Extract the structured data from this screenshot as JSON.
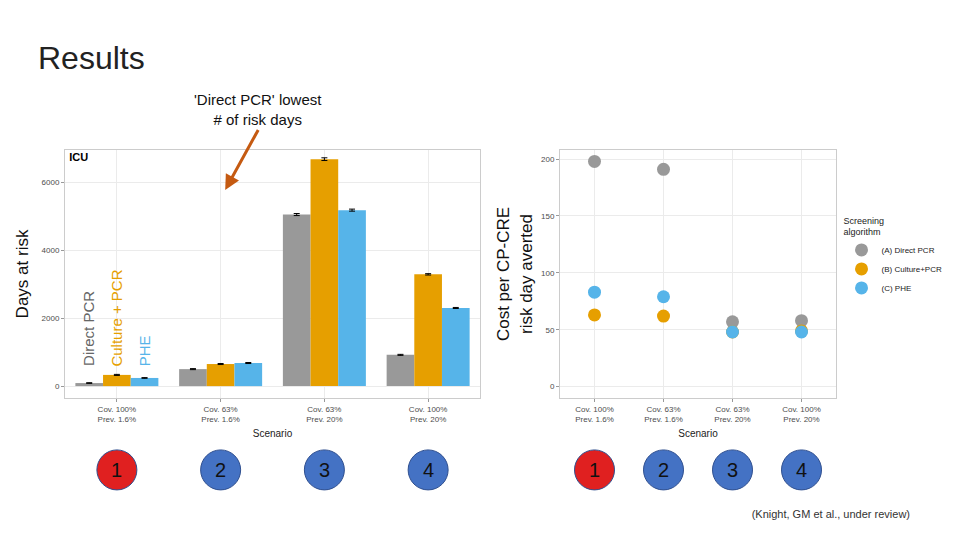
{
  "title": "Results",
  "source": "(Knight, GM et al., under review)",
  "chart_data": [
    {
      "type": "bar",
      "title": "ICU",
      "x_label": "Scenario",
      "y_label": "Days at risk",
      "categories": [
        "Cov. 100%\nPrev. 1.6%",
        "Cov. 63%\nPrev. 1.6%",
        "Cov. 63%\nPrev. 20%",
        "Cov. 100%\nPrev. 20%"
      ],
      "series": [
        {
          "name": "Direct PCR",
          "color": "#999999",
          "values": [
            90,
            500,
            5050,
            920
          ],
          "errors": [
            10,
            15,
            30,
            15
          ]
        },
        {
          "name": "Culture + PCR",
          "color": "#E69F00",
          "values": [
            330,
            650,
            6680,
            3290
          ],
          "errors": [
            15,
            15,
            40,
            20
          ]
        },
        {
          "name": "PHE",
          "color": "#56B4E9",
          "values": [
            240,
            680,
            5180,
            2300
          ],
          "errors": [
            10,
            15,
            30,
            15
          ]
        }
      ],
      "ylim": [
        -350,
        6950
      ],
      "yticks": [
        0,
        2000,
        4000,
        6000
      ],
      "grid": true,
      "annotations": [
        {
          "text": "'Direct PCR' lowest\n# of risk days"
        }
      ],
      "scenario_numbers": [
        1,
        2,
        3,
        4
      ]
    },
    {
      "type": "scatter",
      "x_label": "Scenario",
      "y_label": "Cost per CP-CRE\nrisk day averted",
      "legend_title": "Screening\nalgorithm",
      "categories": [
        "Cov. 100%\nPrev. 1.6%",
        "Cov. 63%\nPrev. 1.6%",
        "Cov. 63%\nPrev. 20%",
        "Cov. 100%\nPrev. 20%"
      ],
      "series": [
        {
          "name": "(A) Direct PCR",
          "color": "#999999",
          "values": [
            198,
            191,
            57,
            58
          ]
        },
        {
          "name": "(B) Culture+PCR",
          "color": "#E69F00",
          "values": [
            63,
            62,
            48,
            49
          ]
        },
        {
          "name": "(C) PHE",
          "color": "#56B4E9",
          "values": [
            83,
            79,
            48,
            48
          ]
        }
      ],
      "ylim": [
        -10,
        208
      ],
      "yticks": [
        0,
        50,
        100,
        150,
        200
      ],
      "grid": true,
      "legend": "right",
      "marker": "circle",
      "scenario_numbers": [
        1,
        2,
        3,
        4
      ]
    }
  ]
}
